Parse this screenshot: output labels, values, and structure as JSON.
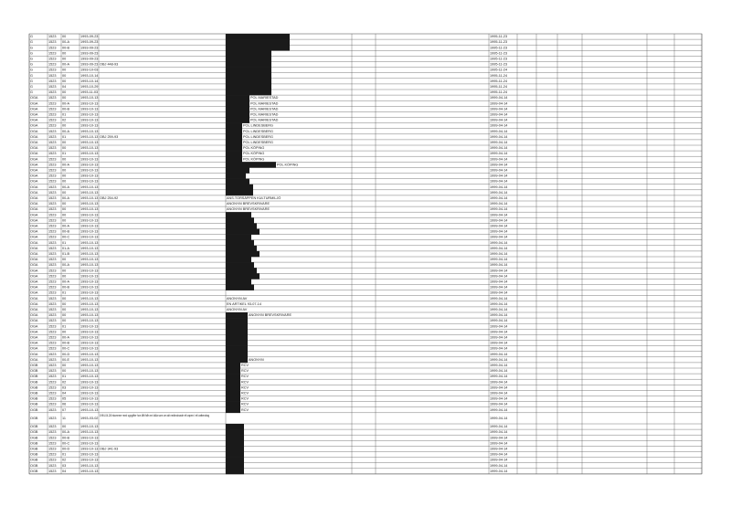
{
  "table": {
    "rows": [
      [
        "G",
        "1523",
        "00",
        "1993-09-23",
        null,
        null,
        "1995-11-23"
      ],
      [
        "G",
        "1523",
        "00-A",
        "1993-09-23",
        null,
        null,
        "1995-11-23"
      ],
      [
        "G",
        "1523",
        "00-B",
        "1993-09-23",
        null,
        null,
        "1995-11-23"
      ],
      [
        "G",
        "1523",
        "00",
        "1993-09-23",
        null,
        null,
        "1995-11-23"
      ],
      [
        "G",
        "1523",
        "00",
        "1993-09-23",
        null,
        null,
        "1995-11-23"
      ],
      [
        "G",
        "1523",
        "00-A",
        "1993-09-23",
        "OBJ 448-93",
        null,
        "1995-11-23"
      ],
      [
        "G",
        "1523",
        "00",
        "1993-10-03",
        null,
        null,
        "1995-11-24"
      ],
      [
        "G",
        "1523",
        "00",
        "1993-10-14",
        null,
        null,
        "1995-11-24"
      ],
      [
        "G",
        "1523",
        "00",
        "1993-10-14",
        null,
        null,
        "1995-11-24"
      ],
      [
        "G",
        "1523",
        "04",
        "1993-10-29",
        null,
        null,
        "1995-11-24"
      ],
      [
        "G",
        "1523",
        "00",
        "1993-11-03",
        null,
        null,
        "1995-11-24"
      ],
      [
        "OGA",
        "1523",
        "00",
        "1993-10-13",
        null,
        "POL MARIESTAD",
        "1999-04-14"
      ],
      [
        "OGA",
        "1523",
        "00-A",
        "1993-10-13",
        null,
        "POL MARIESTAD",
        "1999-04-14"
      ],
      [
        "OGA",
        "1523",
        "00-B",
        "1993-10-13",
        null,
        "POL MARIESTAD",
        "1999-04-14"
      ],
      [
        "OGA",
        "1523",
        "01",
        "1993-10-13",
        null,
        "POL MARIESTAD",
        "1999-04-14"
      ],
      [
        "OGA",
        "1523",
        "02",
        "1993-10-13",
        null,
        "POL MARIESTAD",
        "1999-04-14"
      ],
      [
        "OGA",
        "1523",
        "00",
        "1993-10-13",
        null,
        "POL LINDESBERG",
        "1999-04-14"
      ],
      [
        "OGA",
        "1523",
        "00-A",
        "1993-10-13",
        null,
        "POL LINDESBERG",
        "1999-04-14"
      ],
      [
        "OGA",
        "1523",
        "01",
        "1993-10-13",
        "OBJ 259-93",
        "POL LINDESBERG",
        "1999-04-14"
      ],
      [
        "OGA",
        "1523",
        "00",
        "1993-10-13",
        null,
        "POL LINDESBERG",
        "1999-04-14"
      ],
      [
        "OGA",
        "1523",
        "00",
        "1993-10-13",
        null,
        "POL KÖPING",
        "1999-04-14"
      ],
      [
        "OGA",
        "1523",
        "01",
        "1993-10-13",
        null,
        "POL KÖPING",
        "1999-04-14"
      ],
      [
        "OGA",
        "1523",
        "00",
        "1993-10-13",
        null,
        "POL KÖPING",
        "1999-04-14"
      ],
      [
        "OGA",
        "1523",
        "00-A",
        "1993-10-13",
        null,
        "POL KÖPING",
        "1999-04-14"
      ],
      [
        "OGA",
        "1523",
        "00",
        "1993-10-13",
        null,
        null,
        "1999-04-14"
      ],
      [
        "OGA",
        "1523",
        "00",
        "1993-10-13",
        null,
        null,
        "1999-04-14"
      ],
      [
        "OGA",
        "1523",
        "00",
        "1993-10-13",
        null,
        null,
        "1999-04-14"
      ],
      [
        "OGA",
        "1523",
        "00-A",
        "1993-10-13",
        null,
        null,
        "1999-04-14"
      ],
      [
        "OGA",
        "1523",
        "00",
        "1993-10-13",
        null,
        null,
        "1999-04-14"
      ],
      [
        "OGA",
        "1523",
        "00-A",
        "1993-10-13",
        "OBJ 254-92",
        "ANS.TORSÄPPEN KULTURMILJÖ",
        "1999-04-14"
      ],
      [
        "OGA",
        "1523",
        "00",
        "1993-10-13",
        null,
        "ANONYM BREVSKRIVARE",
        "1999-04-14"
      ],
      [
        "OGA",
        "1523",
        "00",
        "1993-10-13",
        null,
        "ANONYM BREVSKRIVARE",
        "1999-04-14"
      ],
      [
        "OGA",
        "1523",
        "00",
        "1993-10-13",
        null,
        null,
        "1999-04-14"
      ],
      [
        "OGA",
        "1523",
        "00",
        "1993-10-13",
        null,
        null,
        "1999-04-14"
      ],
      [
        "OGA",
        "1523",
        "00-A",
        "1993-10-13",
        null,
        null,
        "1999-04-14"
      ],
      [
        "OGA",
        "1523",
        "00-B",
        "1993-10-13",
        null,
        null,
        "1999-04-14"
      ],
      [
        "OGA",
        "1523",
        "00-C",
        "1993-10-13",
        null,
        null,
        "1999-04-14"
      ],
      [
        "OGA",
        "1523",
        "01",
        "1993-10-13",
        null,
        null,
        "1999-04-14"
      ],
      [
        "OGA",
        "1523",
        "01-A",
        "1993-10-13",
        null,
        null,
        "1999-04-14"
      ],
      [
        "OGA",
        "1523",
        "01-B",
        "1993-10-13",
        null,
        null,
        "1999-04-14"
      ],
      [
        "OGA",
        "1523",
        "00",
        "1993-10-13",
        null,
        null,
        "1999-04-14"
      ],
      [
        "OGA",
        "1523",
        "00-A",
        "1993-10-13",
        null,
        null,
        "1999-04-14"
      ],
      [
        "OGA",
        "1523",
        "00",
        "1993-10-13",
        null,
        null,
        "1999-04-14"
      ],
      [
        "OGA",
        "1523",
        "00",
        "1993-10-13",
        null,
        null,
        "1999-04-14"
      ],
      [
        "OGA",
        "1523",
        "00-A",
        "1993-10-13",
        null,
        null,
        "1999-04-14"
      ],
      [
        "OGA",
        "1523",
        "00-B",
        "1993-10-13",
        null,
        null,
        "1999-04-14"
      ],
      [
        "OGA",
        "1523",
        "01",
        "1993-10-13",
        null,
        null,
        "1999-04-14"
      ],
      [
        "OGA",
        "1523",
        "00",
        "1993-10-13",
        null,
        "ANONYM AV",
        "1999-04-14"
      ],
      [
        "OGA",
        "1523",
        "00",
        "1993-10-13",
        null,
        "EN ARTIKEL 93-07-14",
        "1999-04-14"
      ],
      [
        "OGA",
        "1523",
        "00",
        "1993-10-13",
        null,
        "ANONYM AV",
        "1999-04-14"
      ],
      [
        "OGA",
        "1523",
        "00",
        "1993-10-13",
        null,
        "ANONYM BREVSKRIVARE",
        "1999-04-14"
      ],
      [
        "OGA",
        "1523",
        "00",
        "1993-10-13",
        null,
        null,
        "1999-04-14"
      ],
      [
        "OGA",
        "1523",
        "01",
        "1993-10-13",
        null,
        null,
        "1999-04-14"
      ],
      [
        "OGA",
        "1523",
        "00",
        "1993-10-13",
        null,
        null,
        "1999-04-14"
      ],
      [
        "OGA",
        "1523",
        "00-A",
        "1993-10-13",
        null,
        null,
        "1999-04-14"
      ],
      [
        "OGA",
        "1523",
        "00-B",
        "1993-10-13",
        null,
        null,
        "1999-04-14"
      ],
      [
        "OGA",
        "1523",
        "00-C",
        "1993-10-13",
        null,
        null,
        "1999-04-14"
      ],
      [
        "OGA",
        "1523",
        "00-D",
        "1993-10-13",
        null,
        null,
        "1999-04-14"
      ],
      [
        "OGA",
        "1523",
        "00-E",
        "1993-10-13",
        null,
        "ANONYM",
        "1999-04-14"
      ],
      [
        "OGB",
        "1523",
        "00",
        "1993-10-13",
        null,
        "RCV",
        "1999-04-14"
      ],
      [
        "OGB",
        "1523",
        "00",
        "1993-10-13",
        null,
        "RCV",
        "1999-04-14"
      ],
      [
        "OGB",
        "1523",
        "01",
        "1993-10-13",
        null,
        "RCV",
        "1999-04-14"
      ],
      [
        "OGB",
        "1523",
        "02",
        "1993-10-13",
        null,
        "RCV",
        "1999-04-14"
      ],
      [
        "OGB",
        "1523",
        "03",
        "1993-10-13",
        null,
        "RCV",
        "1999-04-14"
      ],
      [
        "OGB",
        "1523",
        "04",
        "1993-10-13",
        null,
        "RCV",
        "1999-04-14"
      ],
      [
        "OGB",
        "1523",
        "05",
        "1993-10-13",
        null,
        "RCV",
        "1999-04-14"
      ],
      [
        "OGB",
        "1523",
        "06",
        "1993-10-13",
        null,
        "RCV",
        "1999-04-14"
      ],
      [
        "OGB",
        "1523",
        "07",
        "1993-10-13",
        null,
        "RCV",
        "1999-04-14"
      ],
      [
        "OGB",
        "1523",
        "11",
        "1993-03-02",
        "1994-04-28 inkommer med uppgifter hon fått från en källa som om att nedtecknade ett vapen i ett vattendrag",
        null,
        "1999-04-14"
      ],
      [
        "OGB",
        "1523",
        "00",
        "1993-10-13",
        null,
        null,
        "1999-04-14"
      ],
      [
        "OGB",
        "1523",
        "00-A",
        "1993-10-13",
        null,
        null,
        "1999-04-14"
      ],
      [
        "OGB",
        "1523",
        "00-B",
        "1993-10-13",
        null,
        null,
        "1999-04-14"
      ],
      [
        "OGB",
        "1523",
        "00-C",
        "1993-10-13",
        null,
        null,
        "1999-04-14"
      ],
      [
        "OGB",
        "1523",
        "00-D",
        "1993-10-13",
        "OBJ 341-93",
        null,
        "1999-04-14"
      ],
      [
        "OGB",
        "1523",
        "01",
        "1993-10-13",
        null,
        null,
        "1999-04-14"
      ],
      [
        "OGB",
        "1523",
        "02",
        "1993-10-13",
        null,
        null,
        "1999-04-14"
      ],
      [
        "OGB",
        "1523",
        "03",
        "1993-10-13",
        null,
        null,
        "1999-04-14"
      ],
      [
        "OGB",
        "1523",
        "04",
        "1993-10-13",
        null,
        null,
        "1999-04-14"
      ]
    ]
  }
}
